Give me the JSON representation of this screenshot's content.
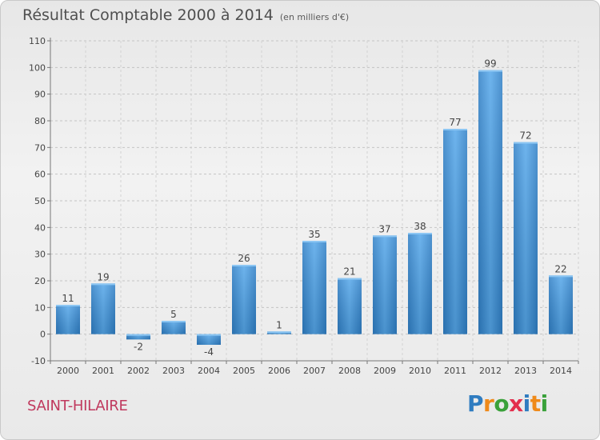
{
  "header": {
    "title": "Résultat Comptable 2000 à 2014",
    "subtitle": "(en milliers d'€)"
  },
  "footer": {
    "commune": "SAINT-HILAIRE",
    "brand": "Proxiti",
    "brand_letters": [
      "P",
      "r",
      "o",
      "x",
      "i",
      "t",
      "i"
    ],
    "brand_colors": [
      "#2f7cc0",
      "#ef8a1a",
      "#3aa13a",
      "#e32f4d",
      "#2f7cc0",
      "#ef8a1a",
      "#3aa13a"
    ]
  },
  "chart_data": {
    "type": "bar",
    "title": "Résultat Comptable 2000 à 2014",
    "subtitle": "(en milliers d'€)",
    "xlabel": "",
    "ylabel": "",
    "categories": [
      "2000",
      "2001",
      "2002",
      "2003",
      "2004",
      "2005",
      "2006",
      "2007",
      "2008",
      "2009",
      "2010",
      "2011",
      "2012",
      "2013",
      "2014"
    ],
    "values": [
      11,
      19,
      -2,
      5,
      -4,
      26,
      1,
      35,
      21,
      37,
      38,
      77,
      99,
      72,
      22
    ],
    "ylim": [
      -10,
      110
    ],
    "yticks": [
      -10,
      0,
      10,
      20,
      30,
      40,
      50,
      60,
      70,
      80,
      90,
      100,
      110
    ],
    "grid": "horizontal dashed",
    "bar_color": "#3a8fd8",
    "bar_color_dark": "#2b72b5",
    "legend": "none"
  }
}
